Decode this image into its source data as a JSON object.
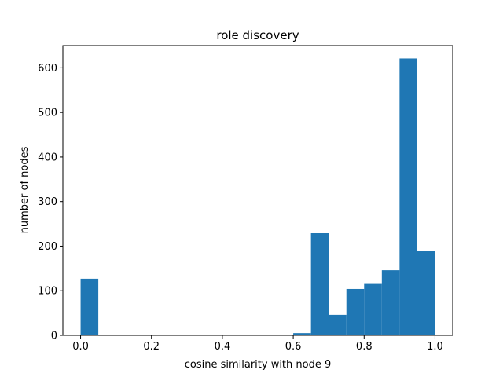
{
  "chart_data": {
    "type": "bar",
    "title": "role discovery",
    "xlabel": "cosine similarity with node 9",
    "ylabel": "number of nodes",
    "xlim": [
      -0.05,
      1.05
    ],
    "ylim": [
      0,
      650
    ],
    "xticks": [
      0.0,
      0.2,
      0.4,
      0.6,
      0.8,
      1.0
    ],
    "xtick_labels": [
      "0.0",
      "0.2",
      "0.4",
      "0.6",
      "0.8",
      "1.0"
    ],
    "yticks": [
      0,
      100,
      200,
      300,
      400,
      500,
      600
    ],
    "ytick_labels": [
      "0",
      "100",
      "200",
      "300",
      "400",
      "500",
      "600"
    ],
    "bin_edges": [
      0.0,
      0.05,
      0.1,
      0.15,
      0.2,
      0.25,
      0.3,
      0.35,
      0.4,
      0.45,
      0.5,
      0.55,
      0.6,
      0.65,
      0.7,
      0.75,
      0.8,
      0.85,
      0.9,
      0.95,
      1.0
    ],
    "values": [
      127,
      0,
      0,
      0,
      0,
      0,
      0,
      0,
      0,
      0,
      0,
      0,
      5,
      229,
      46,
      104,
      117,
      146,
      621,
      189
    ],
    "grid": false,
    "bar_color": "#1f77b4"
  }
}
